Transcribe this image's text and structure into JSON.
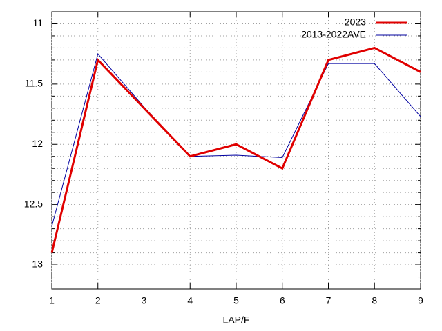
{
  "chart_data": {
    "type": "line",
    "x_label": "LAP/F",
    "x": [
      1,
      2,
      3,
      4,
      5,
      6,
      7,
      8,
      9
    ],
    "xlim": [
      1,
      9
    ],
    "xticks": [
      1,
      2,
      3,
      4,
      5,
      6,
      7,
      8,
      9
    ],
    "ylim": [
      10.9,
      13.2
    ],
    "y_reversed": true,
    "yticks": [
      11,
      11.5,
      12,
      12.5,
      13
    ],
    "yminorticks": [
      11.1,
      11.2,
      11.3,
      11.4,
      11.6,
      11.7,
      11.8,
      11.9,
      12.1,
      12.2,
      12.3,
      12.4,
      12.6,
      12.7,
      12.8,
      12.9,
      13.1
    ],
    "grid": true,
    "legend": "top-right",
    "series": [
      {
        "name": "2023",
        "color": "#e00000",
        "width": 3,
        "values": [
          12.9,
          11.3,
          11.7,
          12.1,
          12.0,
          12.2,
          11.3,
          11.2,
          11.4
        ]
      },
      {
        "name": "2013-2022AVE",
        "color": "#0000a0",
        "width": 1,
        "values": [
          12.68,
          11.25,
          11.69,
          12.1,
          12.09,
          12.11,
          11.33,
          11.33,
          11.77
        ]
      }
    ]
  }
}
